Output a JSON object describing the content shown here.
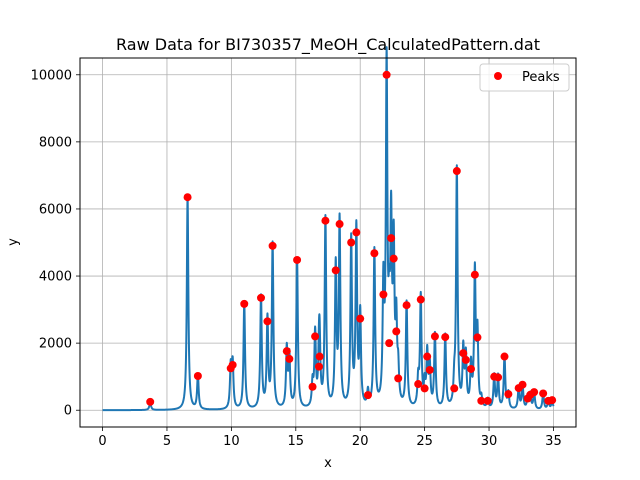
{
  "chart_data": {
    "type": "line",
    "title": "Raw Data for BI730357_MeOH_CalculatedPattern.dat",
    "xlabel": "x",
    "ylabel": "y",
    "xlim": [
      -1.75,
      36.75
    ],
    "ylim": [
      -500,
      10500
    ],
    "xticks": [
      0,
      5,
      10,
      15,
      20,
      25,
      30,
      35
    ],
    "yticks": [
      0,
      2000,
      4000,
      6000,
      8000,
      10000
    ],
    "xtick_labels": [
      "0",
      "5",
      "10",
      "15",
      "20",
      "25",
      "30",
      "35"
    ],
    "ytick_labels": [
      "0",
      "2000",
      "4000",
      "6000",
      "8000",
      "10000"
    ],
    "grid": true,
    "legend": {
      "position": "top-right",
      "entries": [
        "Peaks"
      ]
    },
    "colors": {
      "line": "#1f77b4",
      "peaks": "#ff0000"
    },
    "series": [
      {
        "name": "",
        "kind": "line",
        "baseline": 0,
        "peak_half_width": 0.07,
        "x_range": [
          0,
          35
        ]
      },
      {
        "name": "Peaks",
        "kind": "markers",
        "points": [
          [
            3.7,
            250
          ],
          [
            6.6,
            6350
          ],
          [
            7.4,
            1020
          ],
          [
            9.95,
            1250
          ],
          [
            10.1,
            1350
          ],
          [
            11.0,
            3170
          ],
          [
            12.3,
            3350
          ],
          [
            12.8,
            2650
          ],
          [
            13.2,
            4900
          ],
          [
            14.3,
            1760
          ],
          [
            14.5,
            1530
          ],
          [
            15.1,
            4480
          ],
          [
            16.3,
            700
          ],
          [
            16.5,
            2200
          ],
          [
            16.8,
            1300
          ],
          [
            16.85,
            1600
          ],
          [
            17.3,
            5650
          ],
          [
            18.1,
            4170
          ],
          [
            18.4,
            5550
          ],
          [
            19.3,
            5000
          ],
          [
            19.7,
            5300
          ],
          [
            20.0,
            2730
          ],
          [
            20.6,
            450
          ],
          [
            21.1,
            4680
          ],
          [
            21.8,
            3450
          ],
          [
            22.05,
            10000
          ],
          [
            22.25,
            2000
          ],
          [
            22.4,
            5130
          ],
          [
            22.6,
            4520
          ],
          [
            22.8,
            2350
          ],
          [
            22.95,
            950
          ],
          [
            23.6,
            3130
          ],
          [
            24.5,
            780
          ],
          [
            24.7,
            3300
          ],
          [
            25.0,
            650
          ],
          [
            25.2,
            1600
          ],
          [
            25.4,
            1200
          ],
          [
            25.8,
            2200
          ],
          [
            26.6,
            2180
          ],
          [
            27.3,
            650
          ],
          [
            27.5,
            7130
          ],
          [
            28.0,
            1700
          ],
          [
            28.2,
            1500
          ],
          [
            28.6,
            1230
          ],
          [
            28.9,
            4040
          ],
          [
            29.1,
            2170
          ],
          [
            29.4,
            280
          ],
          [
            29.9,
            280
          ],
          [
            30.4,
            1000
          ],
          [
            30.7,
            980
          ],
          [
            31.2,
            1600
          ],
          [
            31.5,
            480
          ],
          [
            32.3,
            660
          ],
          [
            32.6,
            760
          ],
          [
            33.0,
            350
          ],
          [
            33.2,
            460
          ],
          [
            33.5,
            540
          ],
          [
            34.2,
            500
          ],
          [
            34.6,
            280
          ],
          [
            34.9,
            300
          ]
        ]
      }
    ]
  }
}
